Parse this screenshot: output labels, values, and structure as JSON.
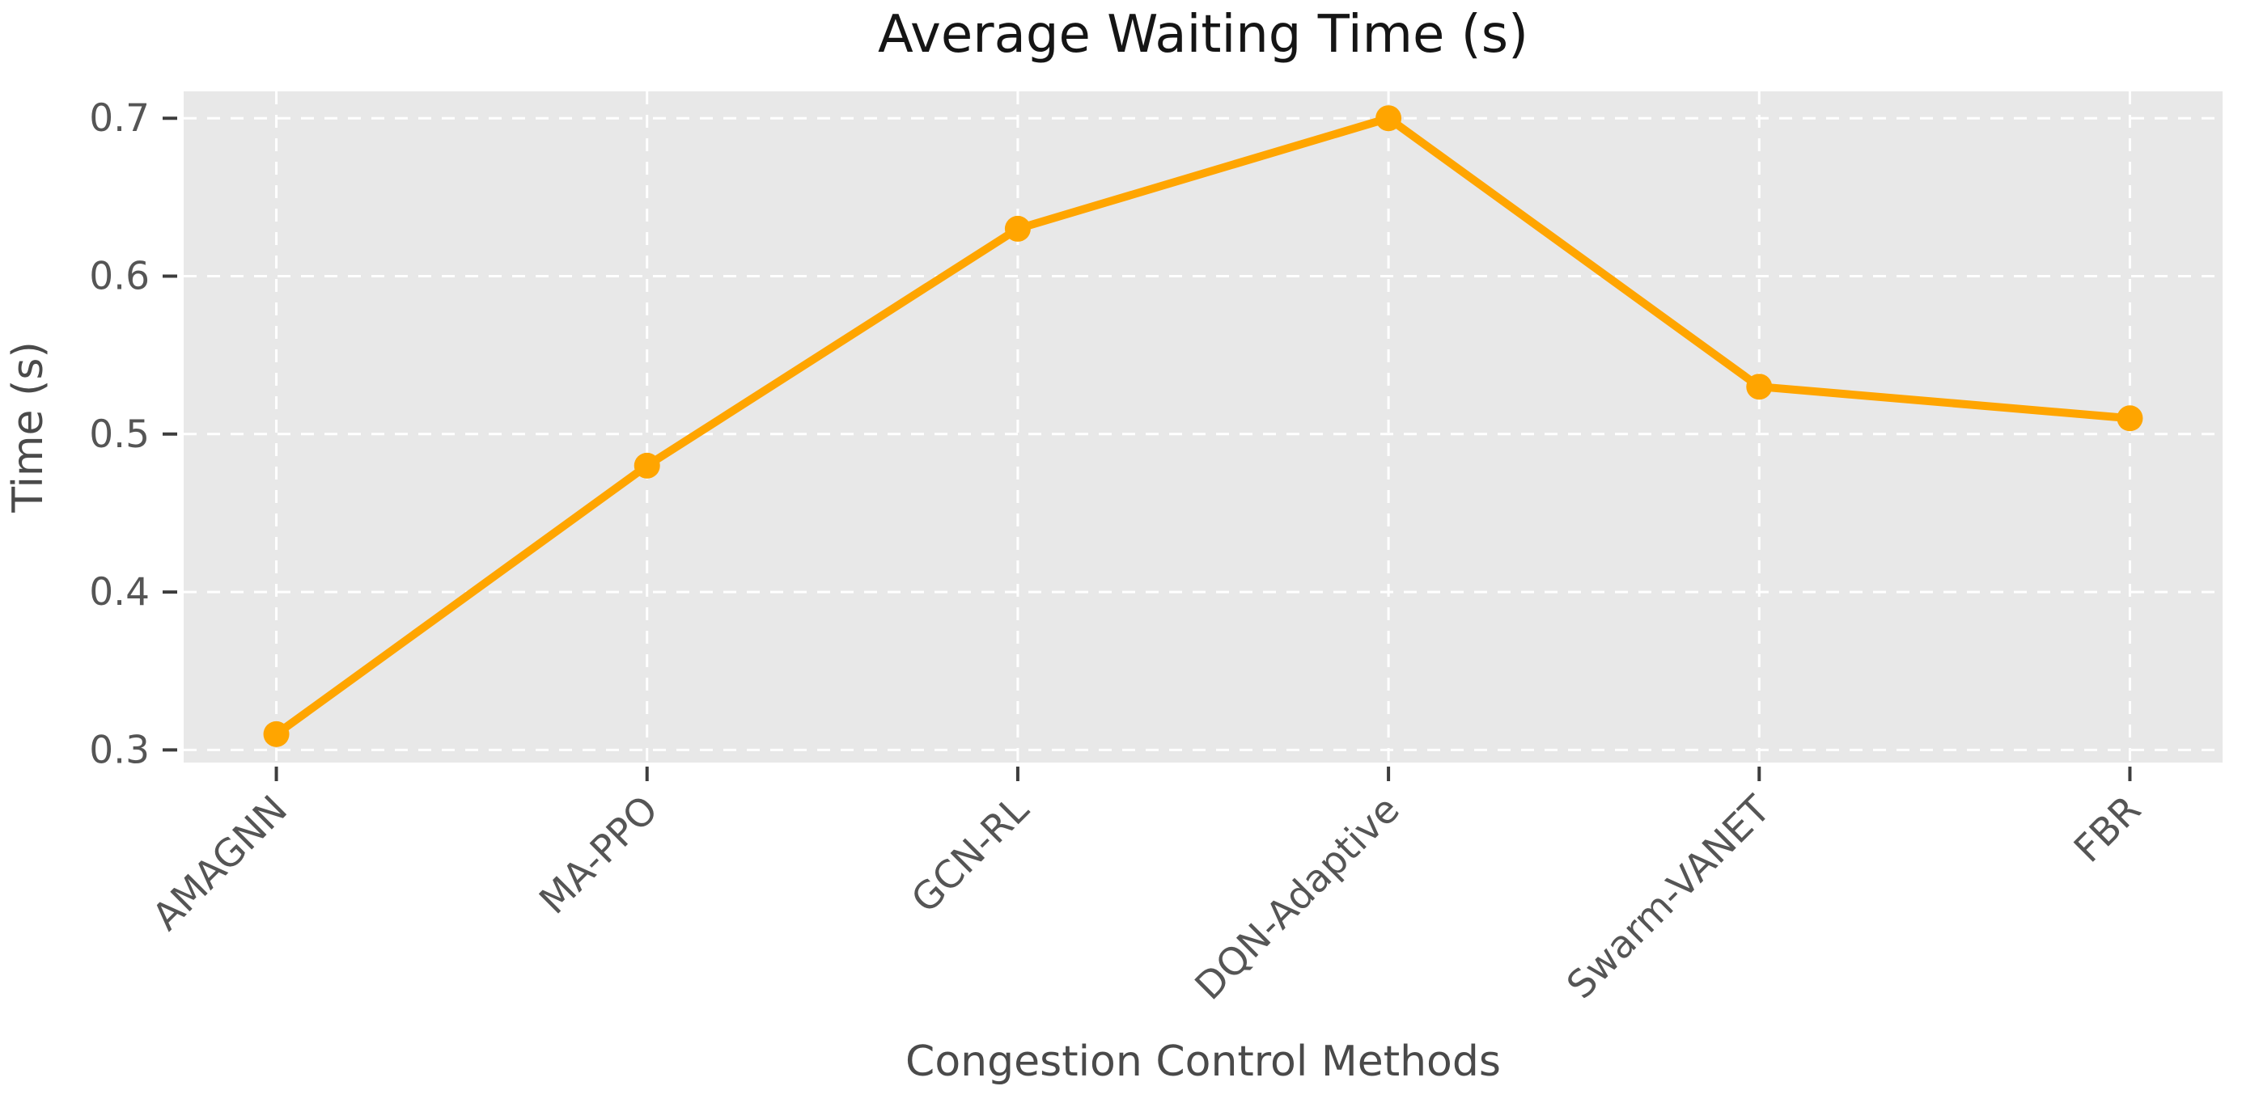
{
  "chart_data": {
    "type": "line",
    "title": "Average Waiting Time (s)",
    "xlabel": "Congestion Control Methods",
    "ylabel": "Time (s)",
    "categories": [
      "AMAGNN",
      "MA-PPO",
      "GCN-RL",
      "DQN-Adaptive",
      "Swarm-VANET",
      "FBR"
    ],
    "values": [
      0.31,
      0.48,
      0.63,
      0.7,
      0.53,
      0.51
    ],
    "ytick_labels": [
      "0.3",
      "0.4",
      "0.5",
      "0.6",
      "0.7"
    ],
    "ytick_values": [
      0.3,
      0.4,
      0.5,
      0.6,
      0.7
    ],
    "ylim": [
      0.292,
      0.717
    ],
    "grid": true,
    "legend": null,
    "line_color": "#FFA500",
    "marker": "o",
    "plot_bg": "#E8E8E8",
    "grid_color": "#FFFFFF",
    "tick_mark_color": "#3D3D3D",
    "tick_label_color": "#555555",
    "axis_label_color": "#4A4A4A",
    "title_color": "#151515"
  }
}
